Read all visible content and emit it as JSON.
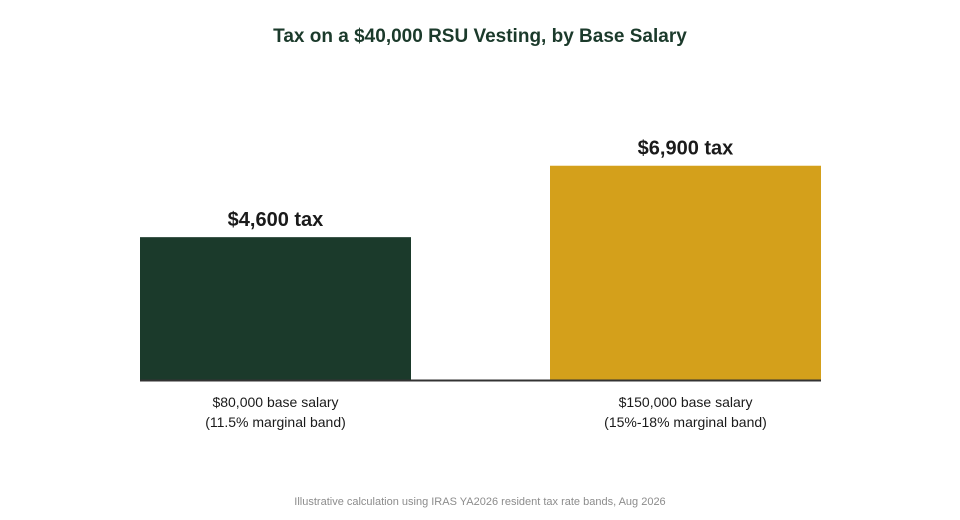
{
  "chart_data": {
    "type": "bar",
    "title": "Tax on a $40,000 RSU Vesting, by Base Salary",
    "categories": [
      [
        "$80,000 base salary",
        "(11.5% marginal band)"
      ],
      [
        "$150,000 base salary",
        "(15%-18% marginal band)"
      ]
    ],
    "values": [
      4600,
      6900
    ],
    "data_labels": [
      "$4,600 tax",
      "$6,900 tax"
    ],
    "colors": [
      "#1b3a2b",
      "#d4a01b"
    ],
    "xlabel": "",
    "ylabel": "",
    "ylim": [
      0,
      7600
    ],
    "grid": false,
    "legend": "none"
  },
  "footnote": "Illustrative calculation using IRAS YA2026 resident tax rate bands, Aug 2026"
}
